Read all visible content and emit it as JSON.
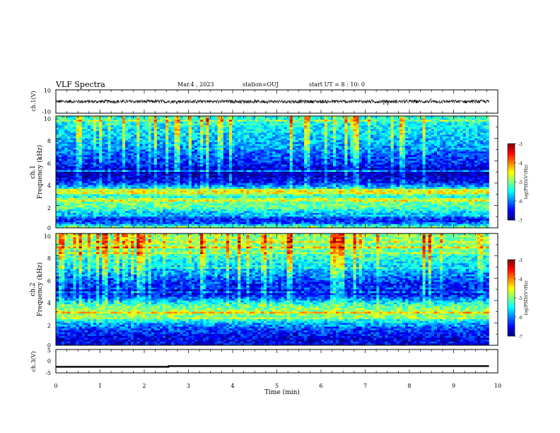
{
  "header": {
    "title": "VLF Spectra",
    "date": "Mar.4 , 2023",
    "station": "station=OUJ",
    "start": "start UT = 8 : 10: 0"
  },
  "chart_data": [
    {
      "type": "line",
      "panel": "ch1-waveform",
      "ylabel": "ch.1(V)",
      "ylim": [
        -10,
        10
      ],
      "yticks": [
        "10",
        "-10"
      ],
      "xlim": [
        0,
        10
      ],
      "series": [
        {
          "x": [
            0,
            9.8
          ],
          "y": [
            0,
            0
          ]
        }
      ],
      "amplitude": 1.5
    },
    {
      "type": "heatmap",
      "panel": "ch1-spectrogram",
      "ylabel": "ch.1",
      "ylabel2": "Frequency (kHz)",
      "ylim": [
        0,
        10
      ],
      "yticks": [
        "0",
        "2",
        "4",
        "6",
        "8",
        "10"
      ],
      "xlim": [
        0,
        10
      ],
      "data_xmax": 9.8,
      "profile": [
        {
          "f": 0.0,
          "v": -4.8
        },
        {
          "f": 0.3,
          "v": -5.8
        },
        {
          "f": 0.6,
          "v": -6.6
        },
        {
          "f": 1.0,
          "v": -6.0
        },
        {
          "f": 1.5,
          "v": -5.5
        },
        {
          "f": 2.0,
          "v": -5.0
        },
        {
          "f": 2.5,
          "v": -5.4
        },
        {
          "f": 3.0,
          "v": -5.2
        },
        {
          "f": 3.5,
          "v": -5.5
        },
        {
          "f": 4.0,
          "v": -6.4
        },
        {
          "f": 4.5,
          "v": -6.7
        },
        {
          "f": 5.0,
          "v": -6.9
        },
        {
          "f": 5.5,
          "v": -6.5
        },
        {
          "f": 6.0,
          "v": -6.3
        },
        {
          "f": 7.0,
          "v": -6.0
        },
        {
          "f": 8.0,
          "v": -5.7
        },
        {
          "f": 9.0,
          "v": -5.5
        },
        {
          "f": 10.0,
          "v": -5.3
        }
      ],
      "colorbar": {
        "label": "log(PSD)(V²/Hz)",
        "range": [
          -7,
          -3
        ],
        "ticks": [
          "-3",
          "-4",
          "-5",
          "-6",
          "-7"
        ]
      }
    },
    {
      "type": "heatmap",
      "panel": "ch2-spectrogram",
      "ylabel": "ch.2",
      "ylabel2": "Frequency (kHz)",
      "ylim": [
        0,
        10
      ],
      "yticks": [
        "0",
        "2",
        "4",
        "6",
        "8",
        "10"
      ],
      "xlim": [
        0,
        10
      ],
      "data_xmax": 9.8,
      "profile": [
        {
          "f": 0.0,
          "v": -6.5
        },
        {
          "f": 0.5,
          "v": -6.6
        },
        {
          "f": 1.0,
          "v": -6.4
        },
        {
          "f": 1.5,
          "v": -6.2
        },
        {
          "f": 2.0,
          "v": -5.8
        },
        {
          "f": 2.5,
          "v": -5.0
        },
        {
          "f": 3.0,
          "v": -4.8
        },
        {
          "f": 3.5,
          "v": -5.1
        },
        {
          "f": 4.0,
          "v": -5.8
        },
        {
          "f": 4.5,
          "v": -6.5
        },
        {
          "f": 5.0,
          "v": -6.6
        },
        {
          "f": 5.5,
          "v": -6.4
        },
        {
          "f": 6.0,
          "v": -6.1
        },
        {
          "f": 7.0,
          "v": -5.7
        },
        {
          "f": 8.0,
          "v": -5.3
        },
        {
          "f": 9.0,
          "v": -5.0
        },
        {
          "f": 10.0,
          "v": -4.9
        }
      ],
      "colorbar": {
        "label": "log(PSD)(V²/Hz)",
        "range": [
          -7,
          -3
        ],
        "ticks": [
          "-3",
          "-4",
          "-5",
          "-6",
          "-7"
        ]
      }
    },
    {
      "type": "line",
      "panel": "ch3-level",
      "ylabel": "ch.3(V)",
      "ylim": [
        -5,
        5
      ],
      "yticks": [
        "5",
        "0",
        "-5"
      ],
      "xlim": [
        0,
        10
      ],
      "xlabel": "Time (min)",
      "xticks": [
        "0",
        "1",
        "2",
        "3",
        "4",
        "5",
        "6",
        "7",
        "8",
        "9",
        "10"
      ],
      "series": [
        {
          "x": [
            0,
            2.55,
            2.55,
            9.8
          ],
          "y": [
            -2.4,
            -2.4,
            -2.1,
            -2.1
          ]
        }
      ]
    }
  ]
}
